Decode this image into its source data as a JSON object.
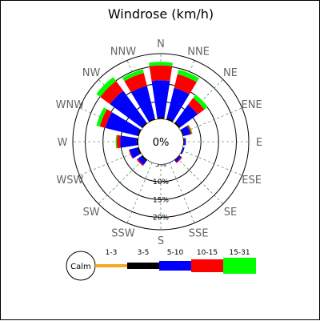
{
  "chart_data": {
    "type": "windrose",
    "title": "Windrose (km/h)",
    "center_label": "0%",
    "directions": [
      "N",
      "NNE",
      "NE",
      "ENE",
      "E",
      "ESE",
      "SE",
      "SSE",
      "S",
      "SSW",
      "SW",
      "WSW",
      "W",
      "WNW",
      "NW",
      "NNW"
    ],
    "rings": [
      {
        "value": 5,
        "label": "5%"
      },
      {
        "value": 10,
        "label": "10%"
      },
      {
        "value": 15,
        "label": "15%"
      },
      {
        "value": 20,
        "label": "20%"
      }
    ],
    "calm_value": 5,
    "rmax": 23.5,
    "bins": [
      {
        "name": "1-3",
        "color": "#f5a623"
      },
      {
        "name": "3-5",
        "color": "#000000"
      },
      {
        "name": "5-10",
        "color": "#0000ff"
      },
      {
        "name": "10-15",
        "color": "#ff0000"
      },
      {
        "name": "15-31",
        "color": "#00ff00"
      }
    ],
    "values": {
      "N": [
        0.1,
        0.5,
        10.4,
        4.2,
        1.0
      ],
      "NNE": [
        0.1,
        0.5,
        8.7,
        4.0,
        1.3
      ],
      "NE": [
        0.1,
        0.5,
        6.0,
        2.4,
        1.2
      ],
      "ENE": [
        0.1,
        0.3,
        1.9,
        0.4,
        0.2
      ],
      "E": [
        0.1,
        0.2,
        0.4,
        0.1,
        0.0
      ],
      "ESE": [
        0.1,
        0.2,
        0.3,
        0.0,
        0.0
      ],
      "SE": [
        0.1,
        0.2,
        0.6,
        0.3,
        0.0
      ],
      "SSE": [
        0.0,
        0.1,
        0.1,
        0.0,
        0.0
      ],
      "S": [
        0.0,
        0.1,
        0.0,
        0.0,
        0.0
      ],
      "SSW": [
        0.0,
        0.1,
        0.0,
        0.0,
        0.0
      ],
      "SW": [
        0.1,
        0.4,
        1.3,
        0.4,
        0.0
      ],
      "WSW": [
        0.1,
        0.4,
        2.3,
        0.2,
        0.0
      ],
      "W": [
        0.1,
        0.4,
        4.6,
        1.0,
        0.3
      ],
      "WNW": [
        0.1,
        0.4,
        9.3,
        1.6,
        1.0
      ],
      "NW": [
        0.1,
        0.4,
        11.0,
        3.4,
        1.4
      ],
      "NNW": [
        0.1,
        0.4,
        9.4,
        3.7,
        1.1
      ]
    },
    "calm": {
      "label": "Calm"
    }
  }
}
